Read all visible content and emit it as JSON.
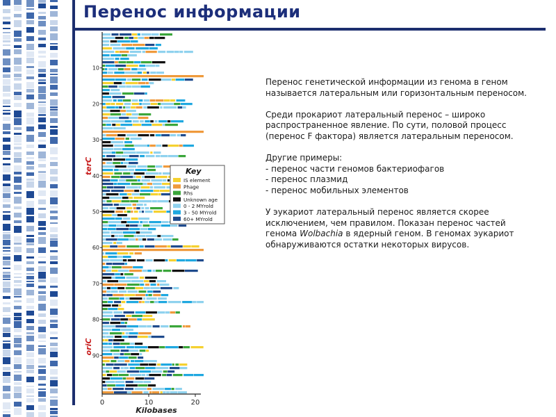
{
  "title": "Перенос информации",
  "figure": {
    "axis": {
      "xlabel": "Kilobases",
      "xticks": [
        "0",
        "10",
        "20"
      ],
      "yticks": [
        "10",
        "20",
        "30",
        "40",
        "50",
        "60",
        "70",
        "80",
        "90"
      ],
      "region_labels": [
        "terC",
        "oriC"
      ]
    },
    "key": {
      "title": "Key",
      "items": [
        {
          "label": "IS element",
          "color": "#f5d130"
        },
        {
          "label": "Phage",
          "color": "#ef9a3c"
        },
        {
          "label": "Rhs",
          "color": "#3aa63a"
        },
        {
          "label": "Unknown age",
          "color": "#111111"
        },
        {
          "label": "0 - 2 MYrold",
          "color": "#8fd2ee"
        },
        {
          "label": "3 - 50 MYrold",
          "color": "#1fa8e0"
        },
        {
          "label": "60+ MYrold",
          "color": "#1e4a8c"
        }
      ]
    }
  },
  "text": {
    "p1": "Перенос генетической информации из генома в геном называется латеральным или горизонтальным переносом.",
    "p2": "Среди прокариот латеральный перенос – широко распространенное явление. По сути, половой процесс (перенос F фактора) является латеральным переносом.",
    "p3_intro": "Другие примеры:",
    "p3_items": [
      "- перенос части геномов бактериофагов",
      "- перенос плазмид",
      "- перенос мобильных элементов"
    ],
    "p4_start": "У эукариот латеральный перенос является скорее исключением, чем правилом. Показан перенос частей генома ",
    "p4_italic": "Wolbachia",
    "p4_end": " в ядерный геном. В геномах эукариот обнаруживаются остатки некоторых вирусов."
  }
}
